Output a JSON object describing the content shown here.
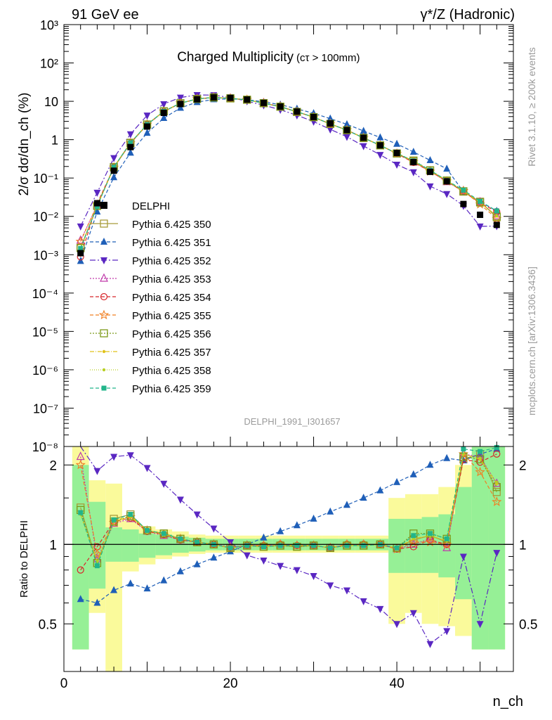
{
  "header": {
    "left": "91 GeV ee",
    "right": "γ*/Z (Hadronic)"
  },
  "side": {
    "rivet": "Rivet 3.1.10, ≥ 200k events",
    "mcplots": "mcplots.cern.ch [arXiv:1306.3436]"
  },
  "chart_data": {
    "type": "line",
    "title": "Charged Multiplicity",
    "title_suffix": "(cτ > 100mm)",
    "analysis_id": "DELPHI_1991_I301657",
    "ylabel": "2/σ dσ/dn_ch (%)",
    "ratio_ylabel": "Ratio to DELPHI",
    "xlabel": "n_ch",
    "xlim": [
      0,
      54
    ],
    "ylim": [
      1e-08,
      1000
    ],
    "yscale": "log",
    "ratio_ylim": [
      0.33,
      2.35
    ],
    "ratio_yscale": "log",
    "x_ticks": [
      "0",
      "20",
      "40"
    ],
    "y_ticks": [
      "10⁻⁸",
      "10⁻⁷",
      "10⁻⁶",
      "10⁻⁵",
      "10⁻⁴",
      "10⁻³",
      "10⁻²",
      "10⁻¹",
      "1",
      "10",
      "10²",
      "10³"
    ],
    "ratio_ticks": [
      "0.5",
      "1",
      "2"
    ],
    "legend_position": "middle-left",
    "x": [
      2,
      4,
      6,
      8,
      10,
      12,
      14,
      16,
      18,
      20,
      22,
      24,
      26,
      28,
      30,
      32,
      34,
      36,
      38,
      40,
      42,
      44,
      46,
      48,
      50,
      52
    ],
    "data": {
      "name": "DELPHI",
      "values": [
        0.0011,
        0.022,
        0.155,
        0.64,
        2.2,
        5.0,
        8.5,
        11.3,
        12.6,
        12.3,
        11.1,
        9.1,
        7.3,
        5.4,
        3.9,
        2.65,
        1.78,
        1.12,
        0.71,
        0.45,
        0.26,
        0.145,
        0.082,
        0.021,
        0.011,
        0.006
      ]
    },
    "band_edges": [
      1,
      3,
      5,
      7,
      9,
      11,
      13,
      15,
      17,
      19,
      21,
      23,
      25,
      27,
      29,
      31,
      33,
      35,
      37,
      39,
      41,
      43,
      45,
      47,
      49,
      51,
      53
    ],
    "band_stat": [
      [
        0.4,
        2.0
      ],
      [
        0.68,
        1.45
      ],
      [
        0.86,
        1.16
      ],
      [
        0.86,
        1.14
      ],
      [
        0.89,
        1.1
      ],
      [
        0.91,
        1.09
      ],
      [
        0.93,
        1.07
      ],
      [
        0.94,
        1.06
      ],
      [
        0.95,
        1.05
      ],
      [
        0.95,
        1.05
      ],
      [
        0.95,
        1.05
      ],
      [
        0.95,
        1.05
      ],
      [
        0.95,
        1.05
      ],
      [
        0.95,
        1.05
      ],
      [
        0.95,
        1.05
      ],
      [
        0.95,
        1.05
      ],
      [
        0.95,
        1.05
      ],
      [
        0.95,
        1.05
      ],
      [
        0.95,
        1.05
      ],
      [
        0.78,
        1.25
      ],
      [
        0.78,
        1.25
      ],
      [
        0.78,
        1.27
      ],
      [
        0.75,
        1.3
      ],
      [
        0.62,
        1.65
      ],
      [
        0.4,
        2.35
      ],
      [
        0.4,
        2.35
      ]
    ],
    "band_total": [
      [
        0.4,
        2.35
      ],
      [
        0.55,
        1.75
      ],
      [
        0.33,
        1.7
      ],
      [
        0.79,
        1.23
      ],
      [
        0.84,
        1.17
      ],
      [
        0.88,
        1.14
      ],
      [
        0.9,
        1.12
      ],
      [
        0.92,
        1.09
      ],
      [
        0.93,
        1.08
      ],
      [
        0.93,
        1.08
      ],
      [
        0.93,
        1.08
      ],
      [
        0.93,
        1.08
      ],
      [
        0.93,
        1.08
      ],
      [
        0.93,
        1.08
      ],
      [
        0.93,
        1.08
      ],
      [
        0.93,
        1.08
      ],
      [
        0.93,
        1.08
      ],
      [
        0.93,
        1.08
      ],
      [
        0.93,
        1.08
      ],
      [
        0.5,
        1.5
      ],
      [
        0.55,
        1.55
      ],
      [
        0.5,
        1.55
      ],
      [
        0.49,
        1.65
      ],
      [
        0.45,
        2.0
      ],
      [
        0.4,
        2.35
      ],
      [
        0.4,
        2.35
      ]
    ],
    "series": [
      {
        "name": "Pythia 6.425 350",
        "color": "#a89b3a",
        "dash": "",
        "marker": "square-open",
        "ratio": [
          1.38,
          0.85,
          1.25,
          1.3,
          1.13,
          1.1,
          1.05,
          1.02,
          1.0,
          0.97,
          0.99,
          0.98,
          0.99,
          0.98,
          0.99,
          0.97,
          0.99,
          0.99,
          1.0,
          0.97,
          1.04,
          1.08,
          1.02,
          2.1,
          2.2,
          1.58
        ]
      },
      {
        "name": "Pythia 6.425 351",
        "color": "#1f5fb8",
        "dash": "5,3",
        "marker": "triangle-up",
        "ratio": [
          0.62,
          0.6,
          0.67,
          0.71,
          0.68,
          0.73,
          0.79,
          0.84,
          0.89,
          0.94,
          1.0,
          1.06,
          1.12,
          1.18,
          1.25,
          1.33,
          1.41,
          1.5,
          1.6,
          1.72,
          1.84,
          2.0,
          2.12,
          2.08,
          2.2,
          2.3
        ]
      },
      {
        "name": "Pythia 6.425 352",
        "color": "#5a27c2",
        "dash": "8,3,2,3",
        "marker": "triangle-down",
        "ratio": [
          5.0,
          1.9,
          2.15,
          2.18,
          1.95,
          1.7,
          1.48,
          1.3,
          1.15,
          1.02,
          0.91,
          0.87,
          0.83,
          0.8,
          0.76,
          0.7,
          0.67,
          0.61,
          0.57,
          0.5,
          0.55,
          0.42,
          0.47,
          0.9,
          0.5,
          0.93
        ]
      },
      {
        "name": "Pythia 6.425 353",
        "color": "#c03aaa",
        "dash": "2,2",
        "marker": "triangle-up-open",
        "ratio": [
          2.15,
          0.88,
          1.2,
          1.25,
          1.12,
          1.08,
          1.04,
          1.02,
          1.0,
          0.98,
          0.99,
          0.99,
          1.0,
          0.99,
          0.99,
          0.97,
          1.0,
          1.0,
          1.0,
          0.96,
          1.0,
          1.05,
          0.97,
          2.2,
          2.15,
          1.7
        ]
      },
      {
        "name": "Pythia 6.425 354",
        "color": "#d8262a",
        "dash": "5,3",
        "marker": "circle-open",
        "ratio": [
          0.8,
          0.98,
          1.22,
          1.26,
          1.12,
          1.09,
          1.04,
          1.02,
          1.0,
          0.97,
          0.99,
          0.99,
          1.0,
          0.99,
          0.99,
          0.97,
          1.0,
          1.0,
          1.0,
          0.96,
          0.98,
          1.04,
          1.0,
          2.1,
          2.05,
          2.2
        ]
      },
      {
        "name": "Pythia 6.425 355",
        "color": "#f07f22",
        "dash": "5,3",
        "marker": "star",
        "ratio": [
          2.0,
          0.92,
          1.21,
          1.27,
          1.13,
          1.09,
          1.05,
          1.02,
          1.0,
          0.97,
          0.99,
          0.99,
          1.0,
          0.99,
          0.99,
          0.97,
          1.0,
          1.0,
          1.0,
          0.96,
          1.02,
          1.02,
          1.0,
          2.2,
          1.88,
          1.45
        ]
      },
      {
        "name": "Pythia 6.425 356",
        "color": "#7c9a1a",
        "dash": "2,2",
        "marker": "square-open",
        "ratio": [
          1.35,
          0.85,
          1.22,
          1.28,
          1.13,
          1.1,
          1.05,
          1.02,
          1.0,
          0.97,
          0.99,
          0.98,
          0.99,
          0.98,
          0.99,
          0.97,
          0.99,
          0.99,
          1.0,
          0.97,
          1.1,
          1.1,
          1.05,
          2.15,
          2.1,
          1.65
        ]
      },
      {
        "name": "Pythia 6.425 357",
        "color": "#e0c21a",
        "dash": "6,2,1,2",
        "marker": "dot",
        "ratio": [
          1.3,
          0.86,
          1.23,
          1.28,
          1.13,
          1.09,
          1.05,
          1.02,
          1.0,
          0.97,
          0.99,
          0.98,
          0.99,
          0.99,
          0.99,
          0.97,
          0.99,
          0.99,
          1.0,
          0.97,
          1.05,
          1.08,
          1.03,
          2.2,
          2.1,
          1.7
        ]
      },
      {
        "name": "Pythia 6.425 358",
        "color": "#b8cf22",
        "dash": "1,2",
        "marker": "dot",
        "ratio": [
          1.3,
          0.86,
          1.22,
          1.27,
          1.13,
          1.09,
          1.05,
          1.02,
          1.0,
          0.97,
          0.99,
          0.98,
          0.99,
          0.99,
          0.99,
          0.97,
          0.99,
          0.99,
          1.0,
          0.97,
          1.05,
          1.08,
          1.03,
          2.2,
          2.12,
          1.72
        ]
      },
      {
        "name": "Pythia 6.425 359",
        "color": "#22b58a",
        "dash": "5,3",
        "marker": "square",
        "ratio": [
          1.32,
          0.83,
          1.24,
          1.3,
          1.13,
          1.1,
          1.05,
          1.02,
          1.0,
          0.97,
          0.99,
          0.98,
          0.99,
          0.99,
          0.99,
          0.97,
          0.99,
          0.99,
          1.0,
          0.97,
          1.08,
          1.1,
          1.05,
          2.3,
          2.25,
          2.33
        ]
      }
    ]
  }
}
